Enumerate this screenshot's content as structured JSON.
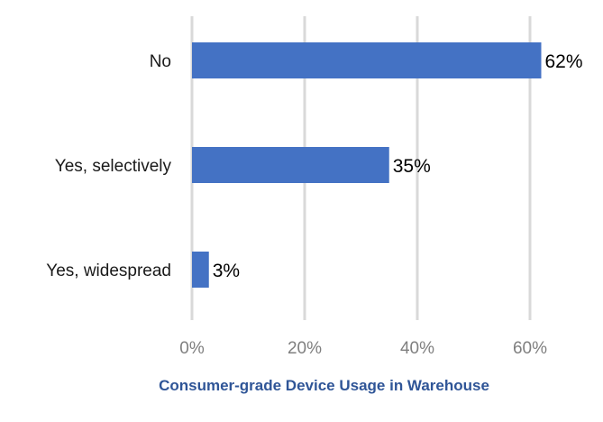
{
  "chart_data": {
    "type": "bar",
    "orientation": "horizontal",
    "title": "",
    "xlabel": "Consumer-grade Device Usage in Warehouse",
    "ylabel": "",
    "categories": [
      "No",
      "Yes, selectively",
      "Yes, widespread"
    ],
    "values": [
      62,
      35,
      3
    ],
    "data_labels": [
      "62%",
      "35%",
      "3%"
    ],
    "xlim": [
      0,
      70
    ],
    "xticks": [
      0,
      20,
      40,
      60
    ],
    "xtick_labels": [
      "0%",
      "20%",
      "40%",
      "60%"
    ],
    "grid": true,
    "legend": "none",
    "colors": {
      "bar": "#4472c4",
      "grid": "#d9d9d9",
      "axis_title": "#2f5597"
    }
  }
}
